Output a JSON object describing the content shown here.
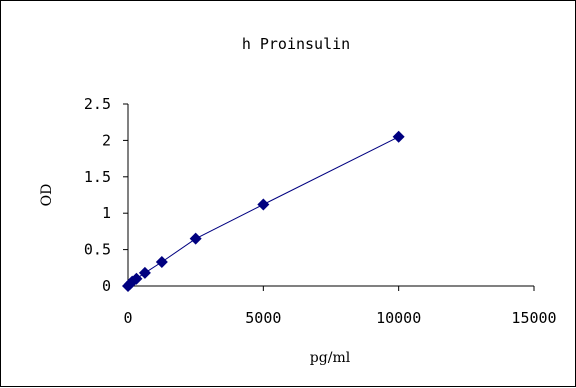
{
  "chart_data": {
    "type": "scatter",
    "title": "h Proinsulin",
    "xlabel": "pg/ml",
    "ylabel": "OD",
    "xlim": [
      0,
      15000
    ],
    "ylim": [
      0,
      2.5
    ],
    "x_ticks": [
      "0",
      "5000",
      "10000",
      "15000"
    ],
    "y_ticks": [
      "0",
      "0.5",
      "1",
      "1.5",
      "2",
      "2.5"
    ],
    "grid": false,
    "series": [
      {
        "x": [
          0,
          78,
          156,
          312,
          625,
          1250,
          2500,
          5000,
          10000
        ],
        "y": [
          0.0,
          0.03,
          0.06,
          0.1,
          0.18,
          0.33,
          0.65,
          1.12,
          2.05
        ],
        "marker": "diamond",
        "color": "#000080",
        "trendline": true
      }
    ]
  }
}
